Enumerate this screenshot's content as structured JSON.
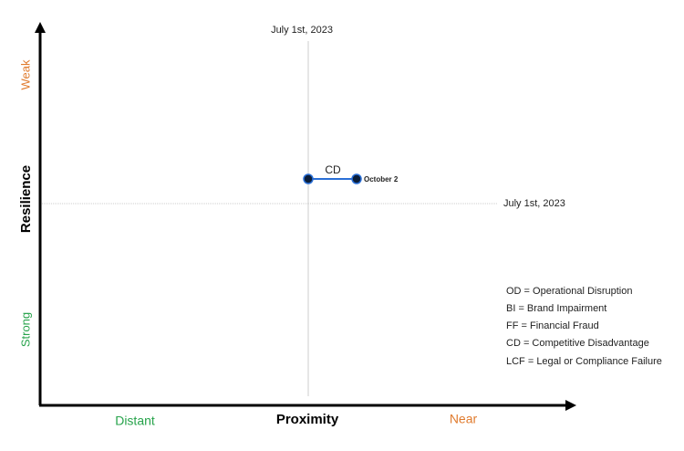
{
  "axes": {
    "y": {
      "title": "Resilience",
      "top_label": "Weak",
      "bottom_label": "Strong"
    },
    "x": {
      "title": "Proximity",
      "left_label": "Distant",
      "right_label": "Near"
    }
  },
  "reference_lines": {
    "vertical": {
      "label": "July 1st, 2023"
    },
    "horizontal": {
      "label": "July 1st, 2023"
    }
  },
  "items": [
    {
      "label": "CD",
      "end_label": "October 2"
    }
  ],
  "legend": [
    "OD = Operational Disruption",
    "BI = Brand Impairment",
    "FF = Financial Fraud",
    "CD = Competitive Disadvantage",
    "LCF = Legal or Compliance Failure"
  ]
}
